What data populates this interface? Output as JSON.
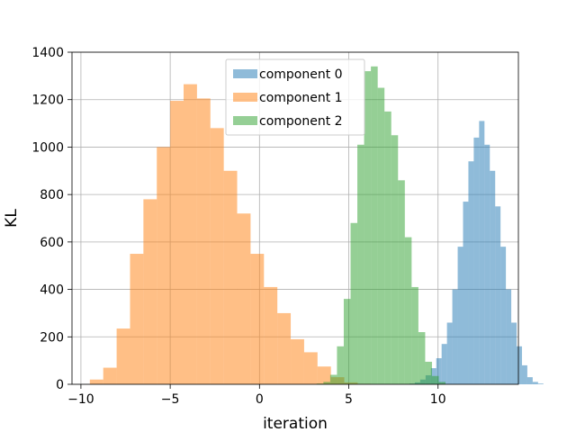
{
  "chart_data": {
    "type": "bar",
    "title": "",
    "xlabel": "iteration",
    "ylabel": "KL",
    "xlim": [
      -10.5,
      14.5
    ],
    "ylim": [
      0,
      1400
    ],
    "xticks": [
      -10,
      -5,
      0,
      5,
      10
    ],
    "xtick_labels": [
      "−10",
      "−5",
      "0",
      "5",
      "10"
    ],
    "yticks": [
      0,
      200,
      400,
      600,
      800,
      1000,
      1200,
      1400
    ],
    "ytick_labels": [
      "0",
      "200",
      "400",
      "600",
      "800",
      "1000",
      "1200",
      "1400"
    ],
    "grid": true,
    "legend_position": "top-center",
    "series": [
      {
        "name": "component 0",
        "color": "#1f77b4",
        "opacity": 0.5,
        "bin_start": 8.4,
        "bin_width": 0.3,
        "values": [
          3,
          8,
          20,
          38,
          68,
          110,
          170,
          260,
          400,
          580,
          770,
          940,
          1040,
          1110,
          1010,
          900,
          750,
          580,
          400,
          260,
          160,
          80,
          30,
          10,
          3
        ]
      },
      {
        "name": "component 1",
        "color": "#ff7f0e",
        "opacity": 0.5,
        "bin_start": -9.5,
        "bin_width": 0.75,
        "values": [
          20,
          70,
          235,
          550,
          780,
          1000,
          1195,
          1265,
          1205,
          1080,
          900,
          720,
          550,
          410,
          300,
          190,
          135,
          75,
          30,
          8,
          2
        ]
      },
      {
        "name": "component 2",
        "color": "#2ca02c",
        "opacity": 0.5,
        "bin_start": 3.2,
        "bin_width": 0.38,
        "values": [
          3,
          10,
          40,
          160,
          360,
          680,
          1010,
          1320,
          1340,
          1250,
          1150,
          1050,
          860,
          620,
          410,
          220,
          95,
          35,
          10
        ]
      }
    ]
  }
}
